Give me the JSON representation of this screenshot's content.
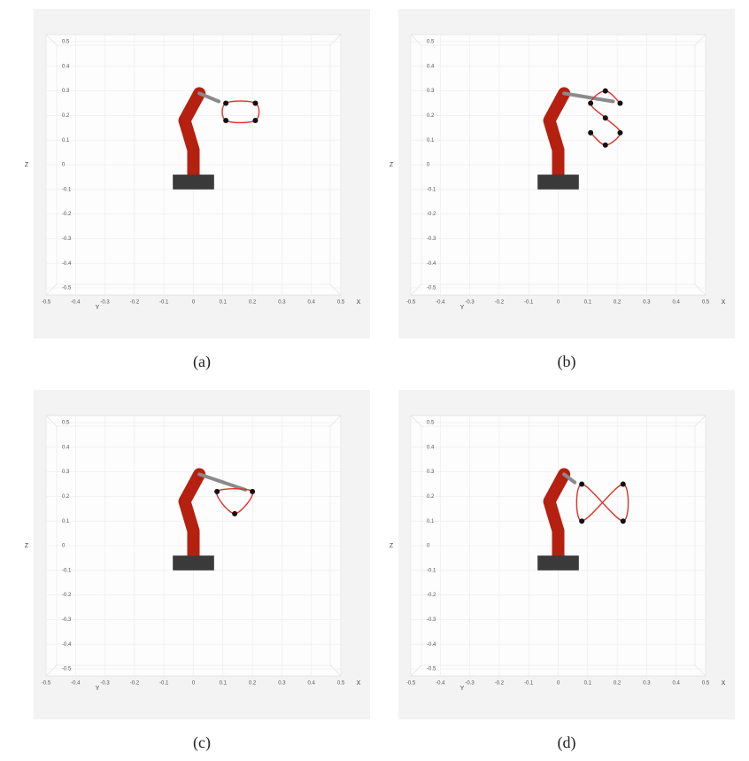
{
  "chart_data": [
    {
      "type": "line",
      "caption": "(a)",
      "xlabel": "X",
      "ylabel": "Z",
      "depth_label": "Y",
      "x": [
        0.11,
        0.21,
        0.21,
        0.11
      ],
      "values": [
        0.25,
        0.25,
        0.18,
        0.18
      ],
      "closed": true,
      "color": "#e0302a",
      "xlim": [
        -0.5,
        0.5
      ],
      "ylim": [
        -0.5,
        0.5
      ],
      "xticks": [
        -0.5,
        -0.4,
        -0.3,
        -0.2,
        -0.1,
        0,
        0.1,
        0.2,
        0.3,
        0.4,
        0.5
      ],
      "yticks": [
        -0.5,
        -0.4,
        -0.3,
        -0.2,
        -0.1,
        0,
        0.1,
        0.2,
        0.3,
        0.4,
        0.5
      ],
      "grid": true
    },
    {
      "type": "line",
      "caption": "(b)",
      "xlabel": "X",
      "ylabel": "Z",
      "depth_label": "Y",
      "x": [
        0.21,
        0.16,
        0.11,
        0.16,
        0.21,
        0.16,
        0.11
      ],
      "values": [
        0.25,
        0.3,
        0.25,
        0.19,
        0.13,
        0.08,
        0.13
      ],
      "closed": false,
      "color": "#e0302a",
      "xlim": [
        -0.5,
        0.5
      ],
      "ylim": [
        -0.5,
        0.5
      ],
      "xticks": [
        -0.5,
        -0.4,
        -0.3,
        -0.2,
        -0.1,
        0,
        0.1,
        0.2,
        0.3,
        0.4,
        0.5
      ],
      "yticks": [
        -0.5,
        -0.4,
        -0.3,
        -0.2,
        -0.1,
        0,
        0.1,
        0.2,
        0.3,
        0.4,
        0.5
      ],
      "grid": true
    },
    {
      "type": "line",
      "caption": "(c)",
      "xlabel": "X",
      "ylabel": "Z",
      "depth_label": "Y",
      "x": [
        0.2,
        0.08,
        0.14
      ],
      "values": [
        0.22,
        0.22,
        0.13
      ],
      "closed": true,
      "color": "#e0302a",
      "xlim": [
        -0.5,
        0.5
      ],
      "ylim": [
        -0.5,
        0.5
      ],
      "xticks": [
        -0.5,
        -0.4,
        -0.3,
        -0.2,
        -0.1,
        0,
        0.1,
        0.2,
        0.3,
        0.4,
        0.5
      ],
      "yticks": [
        -0.5,
        -0.4,
        -0.3,
        -0.2,
        -0.1,
        0,
        0.1,
        0.2,
        0.3,
        0.4,
        0.5
      ],
      "grid": true
    },
    {
      "type": "line",
      "caption": "(d)",
      "xlabel": "X",
      "ylabel": "Z",
      "depth_label": "Y",
      "x": [
        0.08,
        0.22,
        0.22,
        0.08
      ],
      "values": [
        0.25,
        0.1,
        0.25,
        0.1
      ],
      "closed": true,
      "color": "#e0302a",
      "xlim": [
        -0.5,
        0.5
      ],
      "ylim": [
        -0.5,
        0.5
      ],
      "xticks": [
        -0.5,
        -0.4,
        -0.3,
        -0.2,
        -0.1,
        0,
        0.1,
        0.2,
        0.3,
        0.4,
        0.5
      ],
      "yticks": [
        -0.5,
        -0.4,
        -0.3,
        -0.2,
        -0.1,
        0,
        0.1,
        0.2,
        0.3,
        0.4,
        0.5
      ],
      "grid": true
    }
  ]
}
